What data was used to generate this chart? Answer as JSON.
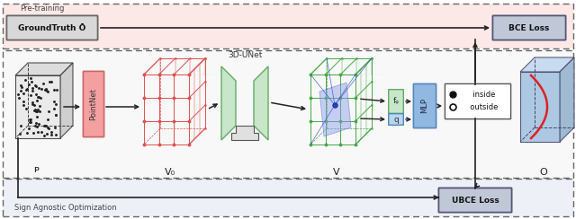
{
  "fig_width": 6.4,
  "fig_height": 2.44,
  "dpi": 100,
  "bg_color": "#ffffff",
  "pre_train_bg": "#fce8e6",
  "middle_bg": "#f8f8f8",
  "bottom_bg": "#eef0f8",
  "pre_train_label": "Pre-training",
  "sign_agnostic_label": "Sign Agnostic Optimization",
  "groundtruth_label": "GroundTruth Ō",
  "bce_loss_label": "BCE Loss",
  "ubce_loss_label": "UBCE Loss",
  "pointnet_label": "PointNet",
  "unet_label": "3D-UNet",
  "mlp_label": "MLP",
  "p_label": "ᴘ",
  "v0_label": "V₀",
  "v_label": "V",
  "o_label": "O",
  "fq_label": "fᵩ",
  "q_label": "q",
  "inside_label": "  inside",
  "outside_label": "  outside",
  "pointnet_color": "#f4a0a0",
  "pointnet_edge": "#cc6666",
  "unet_color": "#c8e6c9",
  "unet_edge": "#66aa66",
  "mlp_color": "#90b8e0",
  "mlp_edge": "#5588bb",
  "fq_color": "#c8e6c9",
  "fq_edge": "#66aa66",
  "q_color": "#b8d8f0",
  "q_edge": "#5588bb",
  "groundtruth_box_color": "#d8d8d8",
  "groundtruth_edge": "#666666",
  "bce_box_color": "#c0c8d8",
  "bce_edge": "#555577",
  "ubce_box_color": "#c0c8d8",
  "ubce_edge": "#555577",
  "grid_red_color": "#e05050",
  "grid_green_color": "#44aa44",
  "output_blue_color": "#a0c0e0",
  "output_edge": "#444466",
  "panel_dash_color": "#666666",
  "arrow_color": "#222222"
}
